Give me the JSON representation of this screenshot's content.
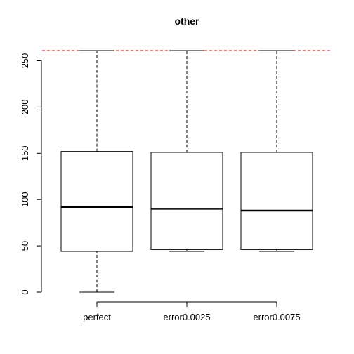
{
  "chart_data": {
    "type": "box",
    "title": "other",
    "xlabel": "",
    "ylabel": "",
    "ylim": [
      0,
      262
    ],
    "y_ticks": [
      0,
      50,
      100,
      150,
      200,
      250
    ],
    "y_tick_labels": [
      "0",
      "50",
      "100",
      "150",
      "200",
      "250"
    ],
    "categories": [
      "perfect",
      "error0.0025",
      "error0.0075"
    ],
    "boxes": [
      {
        "name": "perfect",
        "min": 0,
        "q1": 44,
        "median": 92,
        "q3": 152,
        "max": 261
      },
      {
        "name": "error0.0025",
        "min": 44,
        "q1": 46,
        "median": 90,
        "q3": 151,
        "max": 261
      },
      {
        "name": "error0.0075",
        "min": 44,
        "q1": 46,
        "median": 88,
        "q3": 151,
        "max": 261
      }
    ],
    "reference_line": {
      "y": 261,
      "color": "#cc0000",
      "style": "dashed"
    },
    "grid": false,
    "legend": "none"
  }
}
